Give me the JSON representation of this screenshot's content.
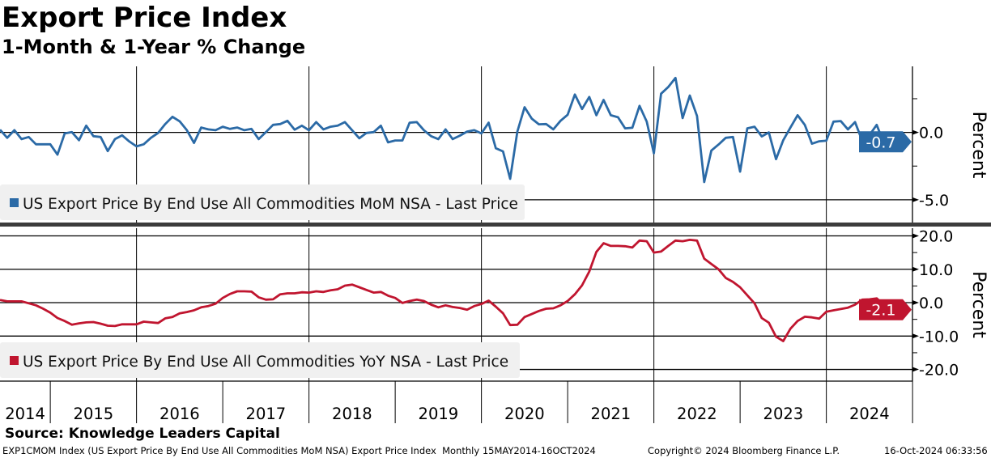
{
  "header": {
    "title": "Export Price Index",
    "subtitle": "1-Month & 1-Year % Change"
  },
  "footer": {
    "source": "Source: Knowledge Leaders Capital",
    "description": "EXP1CMOM Index (US Export Price By End Use All Commodities MoM NSA) Export Price Index  Monthly 15MAY2014-16OCT2024",
    "copyright": "Copyright© 2024 Bloomberg Finance L.P.",
    "timestamp": "16-Oct-2024 06:33:56"
  },
  "chart_data": [
    {
      "type": "line",
      "panel": "top",
      "title": "US Export Price By End Use All Commodities MoM NSA",
      "legend": "US Export Price By End Use All Commodities MoM NSA - Last Price",
      "legend_placement": "bottom-left",
      "ylabel": "Percent",
      "ylim": [
        -6.75,
        4.9
      ],
      "yticks": [
        {
          "v": 0,
          "label": "0.0"
        },
        {
          "v": -5,
          "label": "-5.0"
        }
      ],
      "minor_ticks": [
        2.5,
        -2.5
      ],
      "gridlines": [
        0,
        -5
      ],
      "color": "#2b6aa6",
      "last_value_label": "-0.7",
      "last_value": -0.7,
      "start": "2014-06",
      "frequency": "monthly",
      "values": [
        0.2,
        -0.4,
        0.16,
        -0.5,
        -0.34,
        -0.88,
        -0.88,
        -0.88,
        -1.65,
        -0.08,
        0.02,
        -0.58,
        0.5,
        -0.28,
        -0.34,
        -1.39,
        -0.5,
        -0.22,
        -0.68,
        -1.04,
        -0.88,
        -0.4,
        -0.04,
        0.62,
        1.16,
        0.82,
        0.16,
        -0.78,
        0.36,
        0.22,
        0.16,
        0.42,
        0.26,
        0.36,
        0.16,
        0.26,
        -0.5,
        0.02,
        0.56,
        0.62,
        0.86,
        0.2,
        0.5,
        0.16,
        0.76,
        0.22,
        0.42,
        0.5,
        0.76,
        0.16,
        -0.44,
        -0.04,
        0.02,
        0.5,
        -0.74,
        -0.6,
        -0.6,
        0.72,
        0.76,
        0.16,
        -0.28,
        -0.5,
        0.22,
        -0.5,
        -0.24,
        0.06,
        0.16,
        -0.08,
        0.72,
        -1.18,
        -1.41,
        -3.45,
        0.06,
        1.87,
        1.02,
        0.6,
        0.62,
        0.22,
        0.86,
        1.31,
        2.81,
        1.73,
        2.63,
        1.27,
        2.41,
        1.27,
        1.12,
        0.3,
        0.34,
        1.97,
        0.8,
        -1.55,
        2.87,
        3.37,
        4.04,
        1.06,
        2.73,
        1.22,
        -3.69,
        -1.35,
        -0.9,
        -0.4,
        -0.34,
        -2.91,
        0.3,
        0.42,
        -0.3,
        0,
        -1.99,
        -0.58,
        0.36,
        1.27,
        0.56,
        -0.84,
        -0.66,
        -0.62,
        0.8,
        0.84,
        0.22,
        0.76,
        -0.64,
        -0.2,
        0.56,
        -0.8,
        -0.7
      ]
    },
    {
      "type": "line",
      "panel": "bottom",
      "title": "US Export Price By End Use All Commodities YoY NSA",
      "legend": "US Export Price By End Use All Commodities YoY NSA - Last Price",
      "legend_placement": "bottom-left",
      "ylabel": "Percent",
      "ylim": [
        -23.5,
        22.3
      ],
      "yticks": [
        {
          "v": 20,
          "label": "20.0"
        },
        {
          "v": 10,
          "label": "10.0"
        },
        {
          "v": 0,
          "label": "0.0"
        },
        {
          "v": -10,
          "label": "-10.0"
        },
        {
          "v": -20,
          "label": "-20.0"
        }
      ],
      "minor_ticks": [
        15,
        5,
        -5,
        -15
      ],
      "gridlines": [
        20,
        10,
        0,
        -10,
        -20
      ],
      "color": "#c0152f",
      "last_value_label": "-2.1",
      "last_value": -2.1,
      "start": "2014-06",
      "frequency": "monthly",
      "values": [
        0.8,
        0.4,
        0.4,
        0.4,
        -0.2,
        -0.8,
        -1.8,
        -3.0,
        -4.6,
        -5.5,
        -6.6,
        -6.2,
        -5.9,
        -5.8,
        -6.3,
        -6.9,
        -7.0,
        -6.5,
        -6.5,
        -6.5,
        -5.7,
        -5.9,
        -6.1,
        -4.7,
        -4.3,
        -3.2,
        -2.8,
        -2.3,
        -1.4,
        -1.0,
        -0.3,
        1.4,
        2.6,
        3.4,
        3.4,
        3.3,
        1.6,
        0.9,
        1.0,
        2.5,
        2.8,
        2.8,
        3.1,
        3.0,
        3.4,
        3.2,
        3.7,
        4.0,
        5.1,
        5.4,
        4.6,
        3.8,
        3.0,
        3.2,
        2.1,
        1.4,
        -0.1,
        0.5,
        0.9,
        0.5,
        -0.6,
        -1.4,
        -0.8,
        -1.3,
        -1.6,
        -2.1,
        -1.0,
        -0.4,
        0.6,
        -1.2,
        -3.2,
        -6.7,
        -6.6,
        -4.3,
        -3.4,
        -2.5,
        -1.8,
        -1.7,
        -0.8,
        0.5,
        2.5,
        5.2,
        9.3,
        15.2,
        17.8,
        17.0,
        17.0,
        16.9,
        16.5,
        18.6,
        18.4,
        15.0,
        15.3,
        17.0,
        18.6,
        18.4,
        18.8,
        18.6,
        13.2,
        11.6,
        10.0,
        7.4,
        6.2,
        4.6,
        2.2,
        -0.2,
        -4.6,
        -6.0,
        -10.2,
        -11.5,
        -7.8,
        -5.5,
        -4.2,
        -4.4,
        -4.8,
        -2.7,
        -2.3,
        -1.9,
        -1.5,
        -0.6,
        0.9,
        1.0,
        1.3,
        -0.6,
        -2.1
      ]
    }
  ],
  "x_axis": {
    "years": [
      "2014",
      "2015",
      "2016",
      "2017",
      "2018",
      "2019",
      "2020",
      "2021",
      "2022",
      "2023",
      "2024"
    ]
  }
}
